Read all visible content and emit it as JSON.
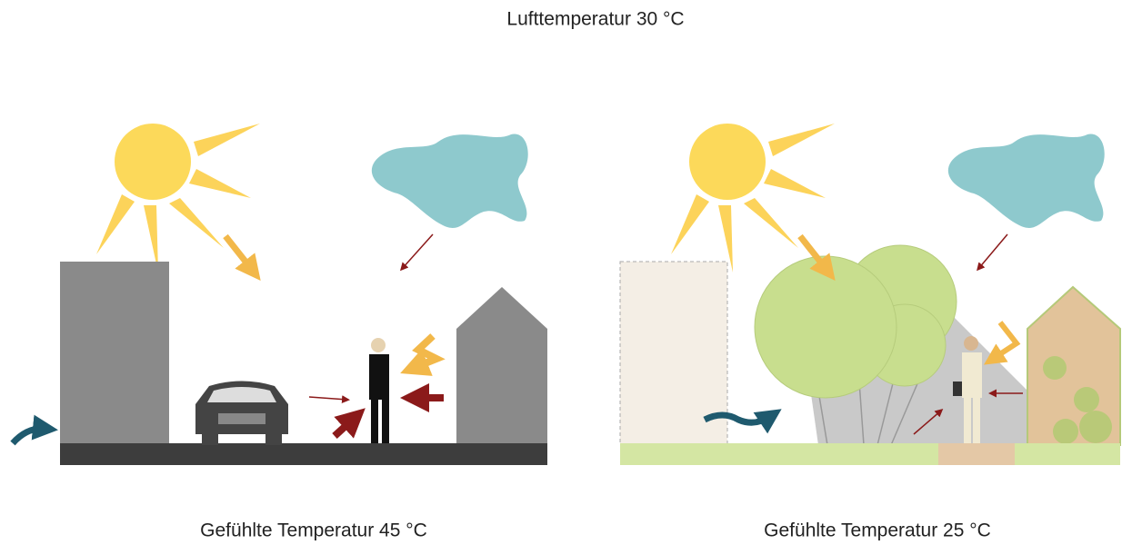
{
  "title": "Lufttemperatur 30 °C",
  "scenes": [
    {
      "caption": "Gefühlte Temperatur 45 °C"
    },
    {
      "caption": "Gefühlte Temperatur 25 °C"
    }
  ]
}
